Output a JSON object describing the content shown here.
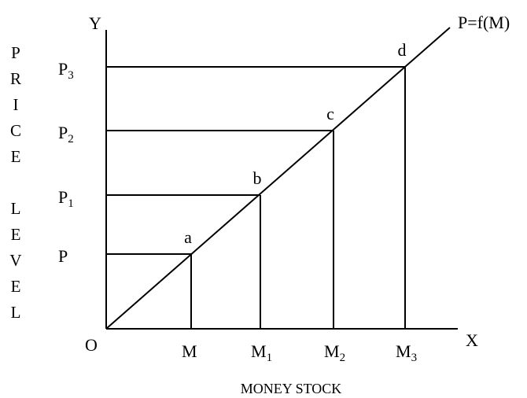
{
  "diagram": {
    "y_axis_title": "PRICE LEVEL",
    "x_axis_title": "MONEY STOCK",
    "y_axis": "Y",
    "x_axis": "X",
    "origin": "O",
    "curve_label": "P=f(M)",
    "y_labels": [
      {
        "main": "P"
      },
      {
        "main": "P",
        "sub": "1"
      },
      {
        "main": "P",
        "sub": "2"
      },
      {
        "main": "P",
        "sub": "3"
      }
    ],
    "x_labels": [
      {
        "main": "M"
      },
      {
        "main": "M",
        "sub": "1"
      },
      {
        "main": "M",
        "sub": "2"
      },
      {
        "main": "M",
        "sub": "3"
      }
    ],
    "points": [
      "a",
      "b",
      "c",
      "d"
    ]
  }
}
